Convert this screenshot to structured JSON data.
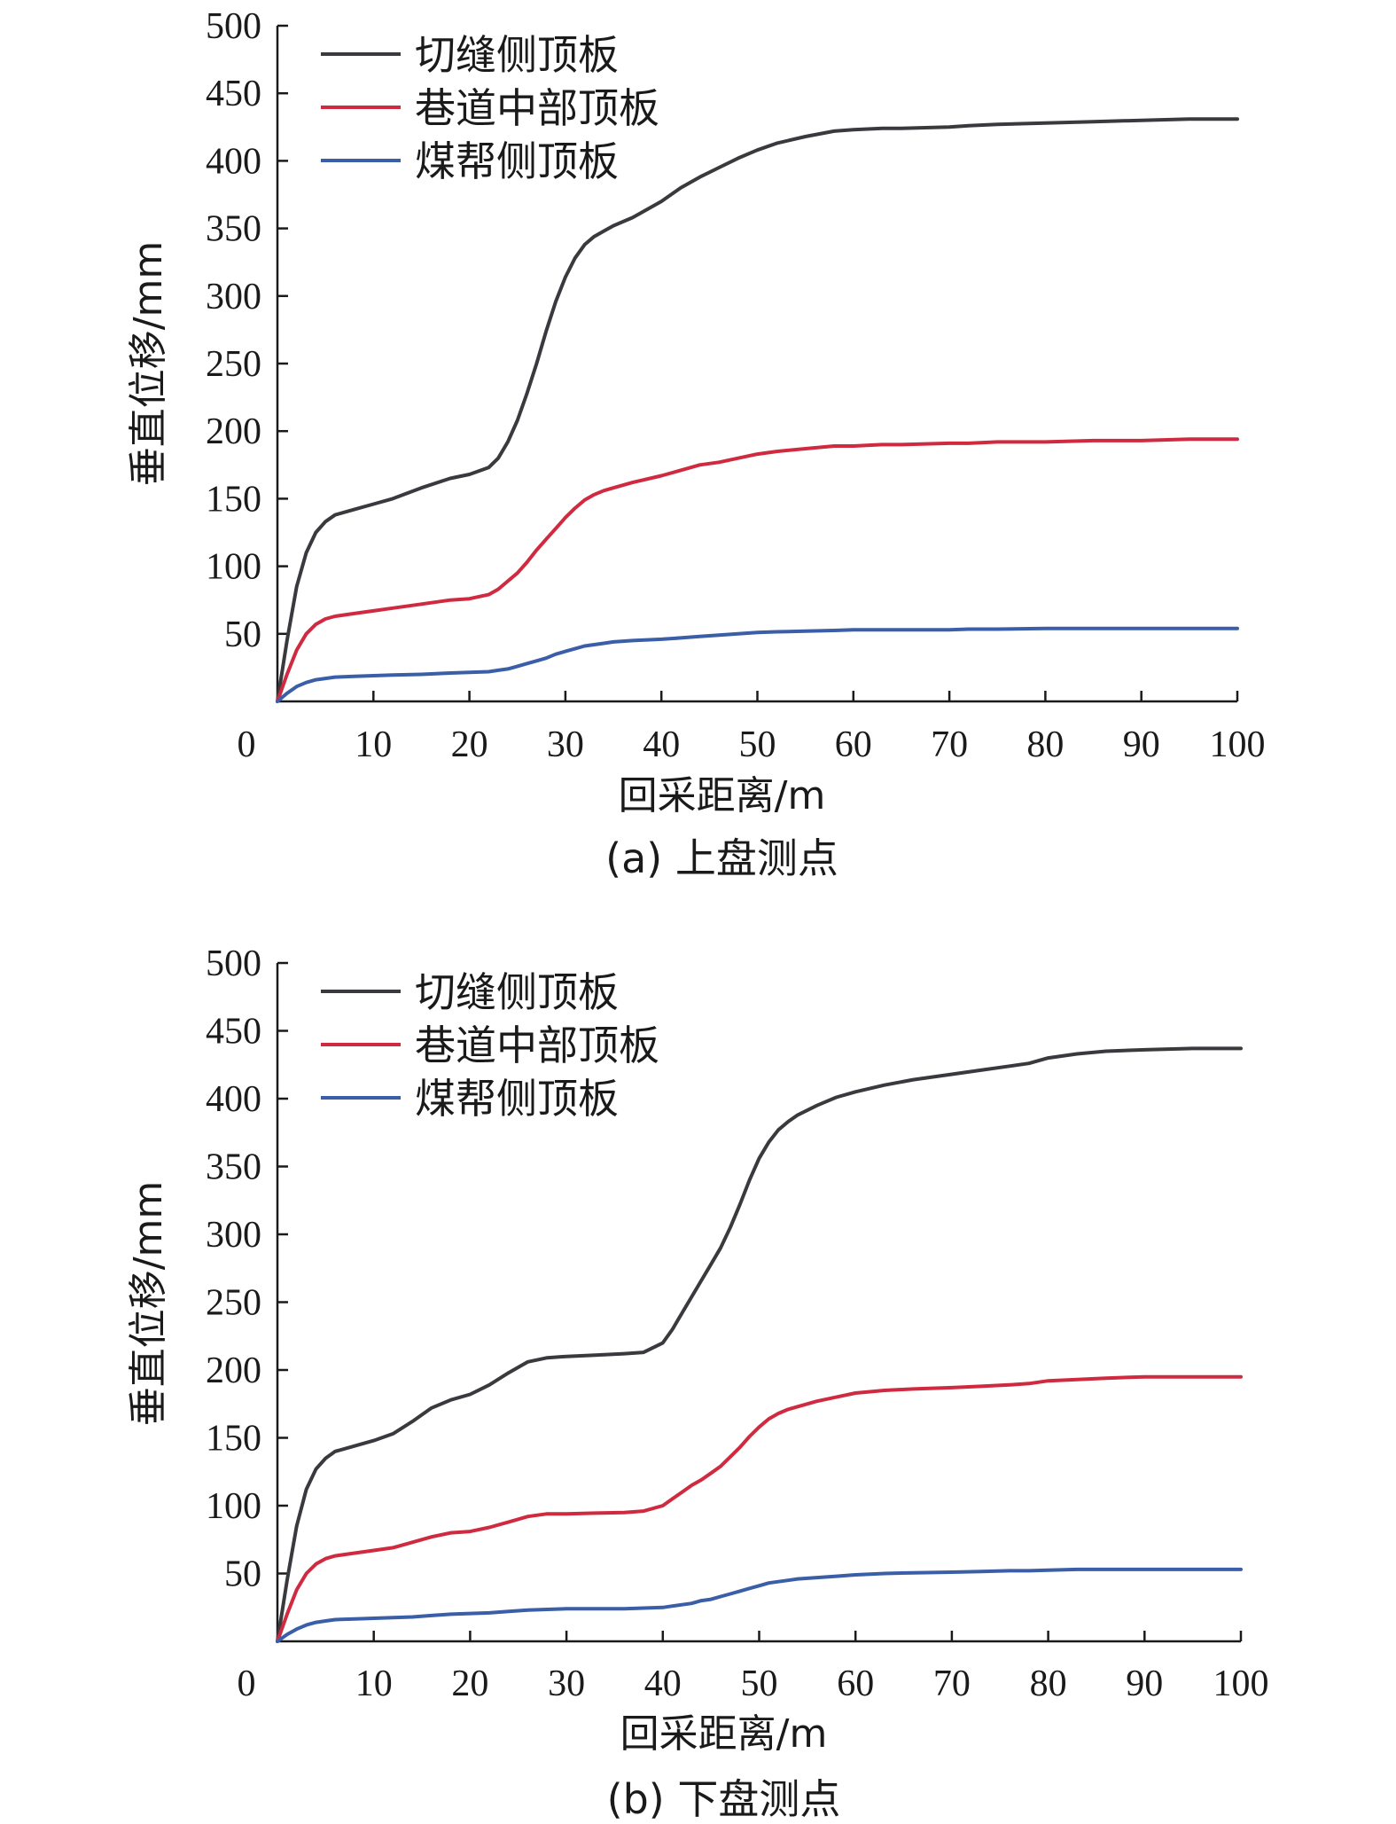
{
  "chart_data": [
    {
      "type": "line",
      "caption": "(a) 上盘测点",
      "xlabel": "回采距离/m",
      "ylabel": "垂直位移/mm",
      "xlim": [
        0,
        100
      ],
      "ylim": [
        0,
        500
      ],
      "xticks": [
        0,
        10,
        20,
        30,
        40,
        50,
        60,
        70,
        80,
        90,
        100
      ],
      "yticks": [
        50,
        100,
        150,
        200,
        250,
        300,
        350,
        400,
        450,
        500
      ],
      "legend_position": "top-left",
      "series": [
        {
          "name": "切缝侧顶板",
          "color": "#3a3a3e",
          "x": [
            0,
            1,
            2,
            3,
            4,
            5,
            6,
            8,
            10,
            12,
            15,
            18,
            20,
            22,
            23,
            24,
            25,
            26,
            27,
            28,
            29,
            30,
            31,
            32,
            33,
            34,
            35,
            37,
            40,
            42,
            44,
            46,
            48,
            50,
            52,
            55,
            58,
            60,
            63,
            65,
            70,
            72,
            75,
            80,
            85,
            90,
            95,
            100
          ],
          "y": [
            0,
            45,
            85,
            110,
            125,
            133,
            138,
            142,
            146,
            150,
            158,
            165,
            168,
            173,
            180,
            192,
            208,
            228,
            250,
            274,
            296,
            314,
            328,
            338,
            344,
            348,
            352,
            358,
            370,
            380,
            388,
            395,
            402,
            408,
            413,
            418,
            422,
            423,
            424,
            424,
            425,
            426,
            427,
            428,
            429,
            430,
            431,
            431
          ]
        },
        {
          "name": "巷道中部顶板",
          "color": "#d02a40",
          "x": [
            0,
            1,
            2,
            3,
            4,
            5,
            6,
            8,
            10,
            12,
            15,
            18,
            20,
            22,
            23,
            24,
            25,
            26,
            27,
            28,
            29,
            30,
            31,
            32,
            33,
            34,
            35,
            37,
            40,
            42,
            44,
            46,
            48,
            50,
            52,
            55,
            58,
            60,
            63,
            65,
            70,
            72,
            75,
            80,
            85,
            90,
            95,
            100
          ],
          "y": [
            0,
            20,
            38,
            50,
            57,
            61,
            63,
            65,
            67,
            69,
            72,
            75,
            76,
            79,
            83,
            89,
            95,
            103,
            112,
            120,
            128,
            136,
            143,
            149,
            153,
            156,
            158,
            162,
            167,
            171,
            175,
            177,
            180,
            183,
            185,
            187,
            189,
            189,
            190,
            190,
            191,
            191,
            192,
            192,
            193,
            193,
            194,
            194
          ]
        },
        {
          "name": "煤帮侧顶板",
          "color": "#3a5ea8",
          "x": [
            0,
            1,
            2,
            3,
            4,
            5,
            6,
            8,
            10,
            12,
            15,
            18,
            20,
            22,
            23,
            24,
            25,
            26,
            27,
            28,
            29,
            30,
            31,
            32,
            33,
            34,
            35,
            37,
            40,
            42,
            44,
            46,
            48,
            50,
            52,
            55,
            58,
            60,
            63,
            65,
            70,
            72,
            75,
            80,
            85,
            90,
            95,
            100
          ],
          "y": [
            0,
            6,
            11,
            14,
            16,
            17,
            18,
            18.5,
            19,
            19.5,
            20,
            21,
            21.5,
            22,
            23,
            24,
            26,
            28,
            30,
            32,
            35,
            37,
            39,
            41,
            42,
            43,
            44,
            45,
            46,
            47,
            48,
            49,
            50,
            51,
            51.5,
            52,
            52.5,
            53,
            53,
            53,
            53,
            53.5,
            53.5,
            54,
            54,
            54,
            54,
            54
          ]
        }
      ]
    },
    {
      "type": "line",
      "caption": "(b) 下盘测点",
      "xlabel": "回采距离/m",
      "ylabel": "垂直位移/mm",
      "xlim": [
        0,
        100
      ],
      "ylim": [
        0,
        500
      ],
      "xticks": [
        0,
        10,
        20,
        30,
        40,
        50,
        60,
        70,
        80,
        90,
        100
      ],
      "yticks": [
        50,
        100,
        150,
        200,
        250,
        300,
        350,
        400,
        450,
        500
      ],
      "legend_position": "top-left",
      "series": [
        {
          "name": "切缝侧顶板",
          "color": "#3a3a3e",
          "x": [
            0,
            1,
            2,
            3,
            4,
            5,
            6,
            8,
            10,
            12,
            14,
            16,
            18,
            20,
            22,
            24,
            26,
            28,
            30,
            33,
            36,
            38,
            40,
            41,
            42,
            43,
            44,
            45,
            46,
            47,
            48,
            49,
            50,
            51,
            52,
            53,
            54,
            56,
            58,
            60,
            63,
            66,
            70,
            73,
            76,
            78,
            80,
            83,
            86,
            90,
            95,
            100
          ],
          "y": [
            0,
            45,
            85,
            112,
            127,
            135,
            140,
            144,
            148,
            153,
            162,
            172,
            178,
            182,
            189,
            198,
            206,
            209,
            210,
            211,
            212,
            213,
            220,
            230,
            242,
            254,
            266,
            278,
            290,
            305,
            322,
            340,
            356,
            368,
            377,
            383,
            388,
            395,
            401,
            405,
            410,
            414,
            418,
            421,
            424,
            426,
            430,
            433,
            435,
            436,
            437,
            437
          ]
        },
        {
          "name": "巷道中部顶板",
          "color": "#d02a40",
          "x": [
            0,
            1,
            2,
            3,
            4,
            5,
            6,
            8,
            10,
            12,
            14,
            16,
            18,
            20,
            22,
            24,
            26,
            28,
            30,
            33,
            36,
            38,
            40,
            41,
            42,
            43,
            44,
            45,
            46,
            47,
            48,
            49,
            50,
            51,
            52,
            53,
            54,
            56,
            58,
            60,
            63,
            66,
            70,
            73,
            76,
            78,
            80,
            83,
            86,
            90,
            95,
            100
          ],
          "y": [
            0,
            20,
            38,
            50,
            57,
            61,
            63,
            65,
            67,
            69,
            73,
            77,
            80,
            81,
            84,
            88,
            92,
            94,
            94,
            94.5,
            95,
            96,
            100,
            105,
            110,
            115,
            119,
            124,
            129,
            136,
            143,
            151,
            158,
            164,
            168,
            171,
            173,
            177,
            180,
            183,
            185,
            186,
            187,
            188,
            189,
            190,
            192,
            193,
            194,
            195,
            195,
            195
          ]
        },
        {
          "name": "煤帮侧顶板",
          "color": "#3a5ea8",
          "x": [
            0,
            1,
            2,
            3,
            4,
            5,
            6,
            8,
            10,
            12,
            14,
            16,
            18,
            20,
            22,
            24,
            26,
            28,
            30,
            33,
            36,
            38,
            40,
            41,
            42,
            43,
            44,
            45,
            46,
            47,
            48,
            49,
            50,
            51,
            52,
            53,
            54,
            56,
            58,
            60,
            63,
            66,
            70,
            73,
            76,
            78,
            80,
            83,
            86,
            90,
            95,
            100
          ],
          "y": [
            0,
            5,
            9,
            12,
            14,
            15,
            16,
            16.5,
            17,
            17.5,
            18,
            19,
            20,
            20.5,
            21,
            22,
            23,
            23.5,
            24,
            24,
            24,
            24.5,
            25,
            26,
            27,
            28,
            30,
            31,
            33,
            35,
            37,
            39,
            41,
            43,
            44,
            45,
            46,
            47,
            48,
            49,
            50,
            50.5,
            51,
            51.5,
            52,
            52,
            52.5,
            53,
            53,
            53,
            53,
            53
          ]
        }
      ]
    }
  ]
}
